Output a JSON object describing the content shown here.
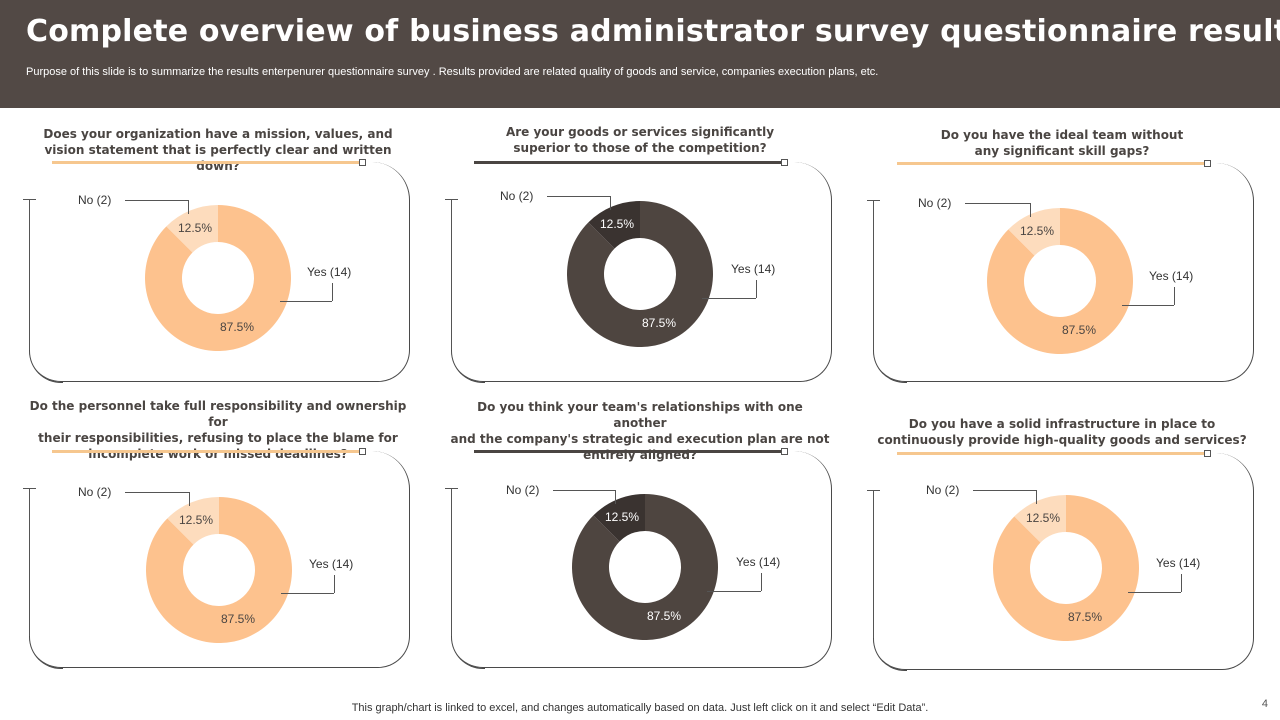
{
  "header": {
    "title": "Complete overview of business administrator survey questionnaire results",
    "subtitle": "Purpose of this slide is to summarize the results  enterpenurer questionnaire survey . Results provided are related quality of goods and service, companies execution plans, etc."
  },
  "colors": {
    "header_bg": "#524945",
    "light_main": "#FDC28E",
    "light_minor": "#FDDCBD",
    "dark_main": "#4E4540",
    "dark_minor": "#3A3330",
    "light_line": "#F6C78F",
    "dark_line": "#4A4542"
  },
  "chart_data": [
    {
      "type": "pie",
      "donut": true,
      "title": "Does your organization have a mission, values, and vision statement that is perfectly clear and written down?",
      "theme": "light",
      "categories": [
        "Yes (14)",
        "No (2)"
      ],
      "values": [
        14,
        2
      ],
      "data_labels": [
        "87.5%",
        "12.5%"
      ]
    },
    {
      "type": "pie",
      "donut": true,
      "title": "Are your goods or services significantly superior to those of the competition?",
      "theme": "dark",
      "categories": [
        "Yes (14)",
        "No (2)"
      ],
      "values": [
        14,
        2
      ],
      "data_labels": [
        "87.5%",
        "12.5%"
      ]
    },
    {
      "type": "pie",
      "donut": true,
      "title": "Do you have the ideal team without any significant skill gaps?",
      "theme": "light",
      "categories": [
        "Yes (14)",
        "No (2)"
      ],
      "values": [
        14,
        2
      ],
      "data_labels": [
        "87.5%",
        "12.5%"
      ]
    },
    {
      "type": "pie",
      "donut": true,
      "title": "Do the personnel take full responsibility and ownership for their responsibilities, refusing to place the blame for incomplete work or missed deadlines?",
      "theme": "light",
      "categories": [
        "Yes (14)",
        "No (2)"
      ],
      "values": [
        14,
        2
      ],
      "data_labels": [
        "87.5%",
        "12.5%"
      ]
    },
    {
      "type": "pie",
      "donut": true,
      "title": "Do you think your team's relationships with one another and the company's strategic and execution plan are not entirely aligned?",
      "theme": "dark",
      "categories": [
        "Yes (14)",
        "No (2)"
      ],
      "values": [
        14,
        2
      ],
      "data_labels": [
        "87.5%",
        "12.5%"
      ]
    },
    {
      "type": "pie",
      "donut": true,
      "title": "Do you have a solid infrastructure in place to continuously provide high-quality goods and services?",
      "theme": "light",
      "categories": [
        "Yes (14)",
        "No (2)"
      ],
      "values": [
        14,
        2
      ],
      "data_labels": [
        "87.5%",
        "12.5%"
      ]
    }
  ],
  "footer": {
    "note": "This graph/chart is linked to excel,  and changes automatically based on data. Just left click on it and select “Edit Data”.",
    "page_number": "4"
  }
}
